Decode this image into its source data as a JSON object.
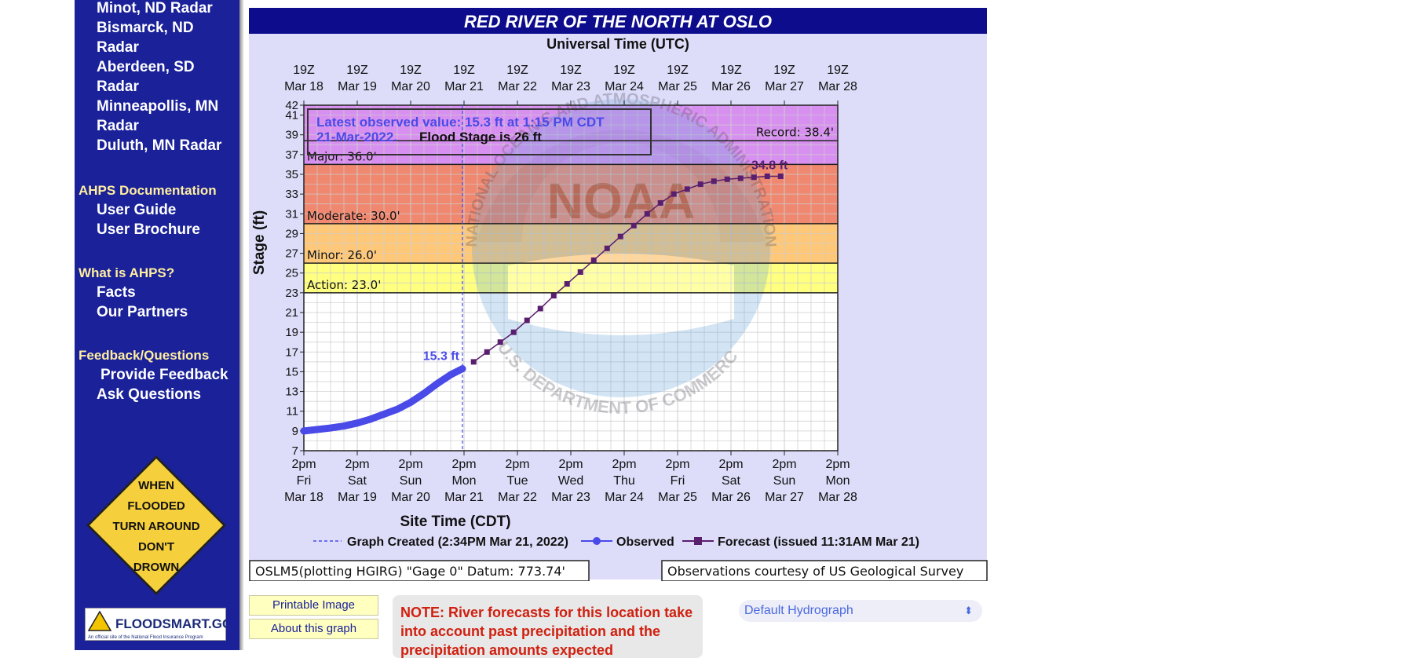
{
  "sidebar": {
    "radars": [
      "Minot, ND Radar",
      "Bismarck, ND Radar",
      "Aberdeen, SD Radar",
      "Minneapollis, MN Radar",
      "Duluth, MN Radar"
    ],
    "doc_heading": "AHPS Documentation",
    "doc_links": [
      "User Guide",
      "User Brochure"
    ],
    "what_heading": "What is AHPS?",
    "what_links": [
      "Facts",
      "Our Partners"
    ],
    "feedback_heading": "Feedback/Questions",
    "feedback_links": [
      "Provide Feedback",
      "Ask Questions"
    ],
    "sign_lines": [
      "WHEN",
      "FLOODED",
      "TURN AROUND",
      "DON'T",
      "DROWN"
    ],
    "floodsmart_text": "FLOODSMART.GOV",
    "floodsmart_sub": "An official site of the National Flood Insurance Program"
  },
  "hydrograph": {
    "title": "RED RIVER OF THE NORTH AT OSLO",
    "top_axis_title": "Universal Time (UTC)",
    "bottom_axis_title": "Site Time (CDT)",
    "y_axis_title": "Stage (ft)",
    "latest_line1": "Latest observed value: 15.3 ft at 1:15 PM CDT",
    "latest_line2": "21-Mar-2022.",
    "flood_stage_text": "Flood Stage is 26 ft",
    "legend_created": "Graph Created (2:34PM Mar 21, 2022)",
    "legend_observed": "Observed",
    "legend_forecast": "Forecast (issued 11:31AM Mar 21)",
    "datum_text": "OSLM5(plotting HGIRG) \"Gage 0\" Datum: 773.74'",
    "courtesy_text": "Observations courtesy of US Geological Survey",
    "obs_label": "15.3 ft",
    "fcst_label": "34.8 ft",
    "watermark_top": "NATIONAL OCEANIC AND ATMOSPHERIC ADMINISTRATION",
    "watermark_noaa": "NOAA",
    "watermark_bottom": "U.S. DEPARTMENT OF COMMERCE"
  },
  "chart_data": {
    "type": "line",
    "ylim": [
      7,
      42
    ],
    "yticks": [
      7,
      9,
      11,
      13,
      15,
      17,
      19,
      21,
      23,
      25,
      27,
      29,
      31,
      33,
      35,
      37,
      39,
      41,
      42
    ],
    "top_ticks": [
      [
        "19Z",
        "Mar 18"
      ],
      [
        "19Z",
        "Mar 19"
      ],
      [
        "19Z",
        "Mar 20"
      ],
      [
        "19Z",
        "Mar 21"
      ],
      [
        "19Z",
        "Mar 22"
      ],
      [
        "19Z",
        "Mar 23"
      ],
      [
        "19Z",
        "Mar 24"
      ],
      [
        "19Z",
        "Mar 25"
      ],
      [
        "19Z",
        "Mar 26"
      ],
      [
        "19Z",
        "Mar 27"
      ],
      [
        "19Z",
        "Mar 28"
      ]
    ],
    "bottom_ticks": [
      [
        "2pm",
        "Fri",
        "Mar 18"
      ],
      [
        "2pm",
        "Sat",
        "Mar 19"
      ],
      [
        "2pm",
        "Sun",
        "Mar 20"
      ],
      [
        "2pm",
        "Mon",
        "Mar 21"
      ],
      [
        "2pm",
        "Tue",
        "Mar 22"
      ],
      [
        "2pm",
        "Wed",
        "Mar 23"
      ],
      [
        "2pm",
        "Thu",
        "Mar 24"
      ],
      [
        "2pm",
        "Fri",
        "Mar 25"
      ],
      [
        "2pm",
        "Sat",
        "Mar 26"
      ],
      [
        "2pm",
        "Sun",
        "Mar 27"
      ],
      [
        "2pm",
        "Mon",
        "Mar 28"
      ]
    ],
    "categories": [
      {
        "label": "Action: 23.0'",
        "from": 23,
        "to": 26,
        "color": "#ffff80"
      },
      {
        "label": "Minor: 26.0'",
        "from": 26,
        "to": 30,
        "color": "#ffc878"
      },
      {
        "label": "Moderate: 30.0'",
        "from": 30,
        "to": 36,
        "color": "#f08870"
      },
      {
        "label": "Major: 36.0'",
        "from": 36,
        "to": 42,
        "color": "#d890f0"
      }
    ],
    "record": {
      "label": "Record: 38.4'",
      "value": 38.4
    },
    "observed": {
      "name": "Observed",
      "color": "#4a4ae8",
      "points": [
        [
          0,
          9.0
        ],
        [
          0.25,
          9.15
        ],
        [
          0.5,
          9.3
        ],
        [
          0.75,
          9.5
        ],
        [
          1.0,
          9.8
        ],
        [
          1.25,
          10.2
        ],
        [
          1.5,
          10.7
        ],
        [
          1.75,
          11.2
        ],
        [
          2.0,
          11.9
        ],
        [
          2.25,
          12.8
        ],
        [
          2.5,
          13.8
        ],
        [
          2.75,
          14.7
        ],
        [
          2.97,
          15.3
        ]
      ]
    },
    "forecast": {
      "name": "Forecast (issued 11:31AM Mar 21)",
      "color": "#5a1e6e",
      "points": [
        [
          3.18,
          16.0
        ],
        [
          3.43,
          17.0
        ],
        [
          3.68,
          18.0
        ],
        [
          3.93,
          19.0
        ],
        [
          4.18,
          20.2
        ],
        [
          4.43,
          21.4
        ],
        [
          4.68,
          22.7
        ],
        [
          4.93,
          23.9
        ],
        [
          5.18,
          25.1
        ],
        [
          5.43,
          26.3
        ],
        [
          5.68,
          27.5
        ],
        [
          5.93,
          28.7
        ],
        [
          6.18,
          29.8
        ],
        [
          6.43,
          31.0
        ],
        [
          6.68,
          32.1
        ],
        [
          6.93,
          33.0
        ],
        [
          7.18,
          33.5
        ],
        [
          7.43,
          34.0
        ],
        [
          7.68,
          34.3
        ],
        [
          7.93,
          34.5
        ],
        [
          8.18,
          34.6
        ],
        [
          8.43,
          34.7
        ],
        [
          8.68,
          34.8
        ],
        [
          8.93,
          34.8
        ]
      ]
    },
    "graph_created_x": 2.97
  },
  "buttons": {
    "printable": "Printable Image",
    "about": "About this graph"
  },
  "note_text": "NOTE: River forecasts for this location take into account past precipitation and the precipitation amounts expected",
  "select_value": "Default Hydrograph",
  "colors": {
    "sidebar_bg": "#1a2199",
    "chart_bg": "#ddddfa",
    "title_bar": "#0c0c8c"
  }
}
